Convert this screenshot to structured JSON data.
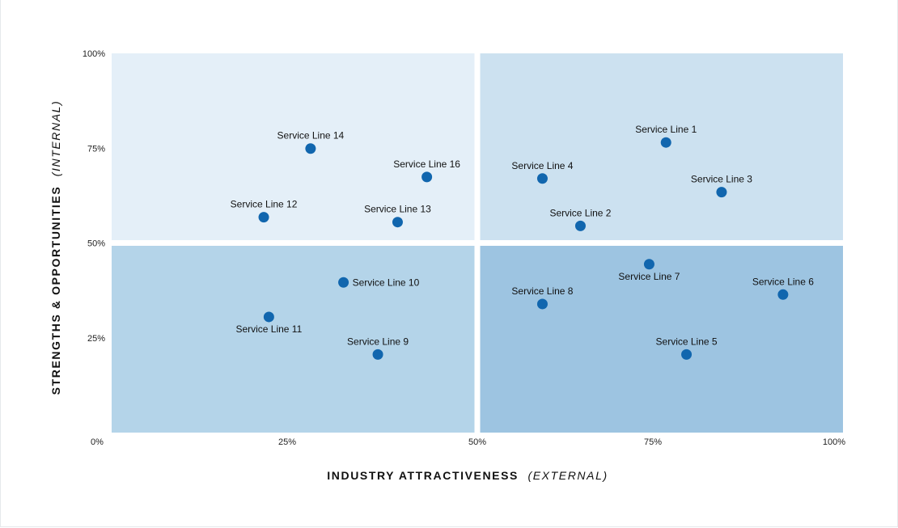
{
  "chart_data": {
    "type": "scatter",
    "title": "",
    "xlabel": {
      "main": "INDUSTRY ATTRACTIVENESS",
      "sub": "(EXTERNAL)"
    },
    "ylabel": {
      "main": "STRENGTHS & OPPORTUNITIES",
      "sub": "(INTERNAL)"
    },
    "xlim": [
      0,
      100
    ],
    "ylim": [
      0,
      100
    ],
    "x_ticks": [
      {
        "value": 0,
        "label": "0%"
      },
      {
        "value": 25,
        "label": "25%"
      },
      {
        "value": 50,
        "label": "50%"
      },
      {
        "value": 75,
        "label": "75%"
      },
      {
        "value": 100,
        "label": "100%"
      }
    ],
    "y_ticks": [
      {
        "value": 25,
        "label": "25%"
      },
      {
        "value": 50,
        "label": "50%"
      },
      {
        "value": 75,
        "label": "75%"
      },
      {
        "value": 100,
        "label": "100%"
      }
    ],
    "quadrant_colors": {
      "top_left": "#e4eff8",
      "top_right": "#cce1f0",
      "bottom_left": "#b4d4e9",
      "bottom_right": "#9dc4e1"
    },
    "marker_color": "#1166ae",
    "grid": false,
    "legend": "none",
    "points": [
      {
        "name": "Service Line 1",
        "x": 75.8,
        "y": 76.5,
        "label_pos": "above"
      },
      {
        "name": "Service Line 2",
        "x": 64.1,
        "y": 54.5,
        "label_pos": "above"
      },
      {
        "name": "Service Line 3",
        "x": 83.4,
        "y": 63.4,
        "label_pos": "above"
      },
      {
        "name": "Service Line 4",
        "x": 58.9,
        "y": 67.0,
        "label_pos": "above"
      },
      {
        "name": "Service Line 5",
        "x": 78.6,
        "y": 20.6,
        "label_pos": "above"
      },
      {
        "name": "Service Line 6",
        "x": 91.8,
        "y": 36.4,
        "label_pos": "above"
      },
      {
        "name": "Service Line 7",
        "x": 73.5,
        "y": 44.4,
        "label_pos": "below"
      },
      {
        "name": "Service Line 8",
        "x": 58.9,
        "y": 33.9,
        "label_pos": "above"
      },
      {
        "name": "Service Line 9",
        "x": 36.4,
        "y": 20.6,
        "label_pos": "above"
      },
      {
        "name": "Service Line 10",
        "x": 31.7,
        "y": 39.6,
        "label_pos": "right"
      },
      {
        "name": "Service Line 11",
        "x": 21.5,
        "y": 30.5,
        "label_pos": "below"
      },
      {
        "name": "Service Line 12",
        "x": 20.8,
        "y": 56.8,
        "label_pos": "above"
      },
      {
        "name": "Service Line 13",
        "x": 39.1,
        "y": 55.5,
        "label_pos": "above"
      },
      {
        "name": "Service Line 14",
        "x": 27.2,
        "y": 74.9,
        "label_pos": "above"
      },
      {
        "name": "Service Line 16",
        "x": 43.1,
        "y": 67.4,
        "label_pos": "above"
      }
    ]
  }
}
